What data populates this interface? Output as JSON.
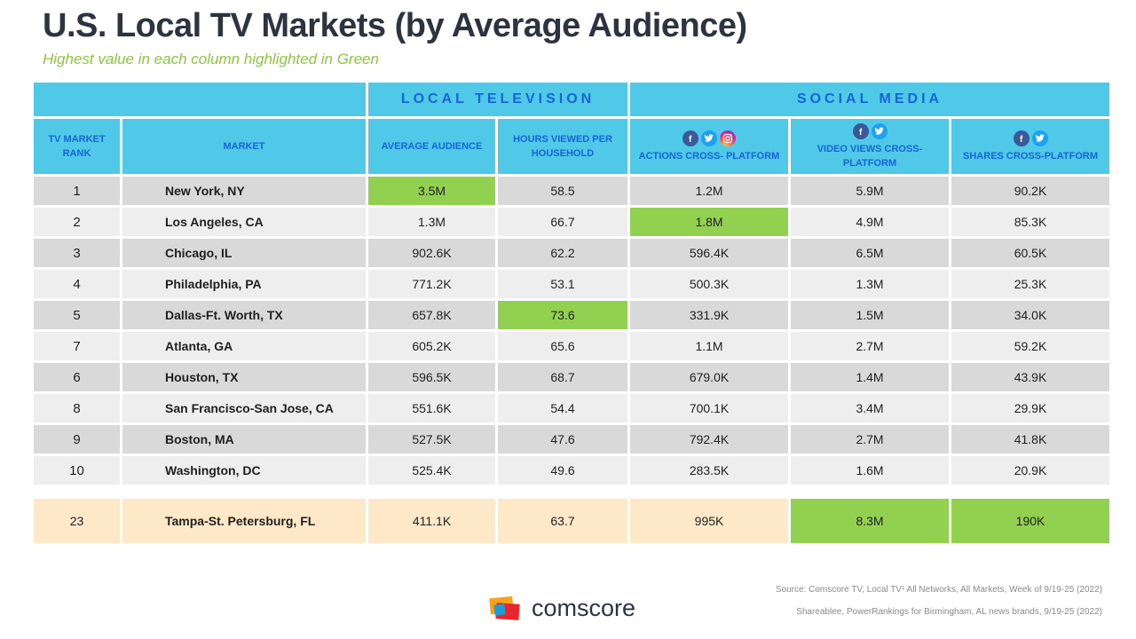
{
  "title": "U.S. Local TV Markets (by Average Audience)",
  "subtitle": "Highest value in each column highlighted in Green",
  "groups": {
    "local_tv": "LOCAL TELEVISION",
    "social": "SOCIAL MEDIA"
  },
  "columns": {
    "rank": "TV MARKET RANK",
    "market": "MARKET",
    "avg_audience": "AVERAGE AUDIENCE",
    "hours": "HOURS VIEWED PER HOUSEHOLD",
    "actions": "ACTIONS CROSS- PLATFORM",
    "video_views": "VIDEO VIEWS CROSS-PLATFORM",
    "shares": "SHARES CROSS-PLATFORM"
  },
  "icons": {
    "actions": [
      "facebook-icon",
      "twitter-icon",
      "instagram-icon"
    ],
    "video_views": [
      "facebook-icon",
      "twitter-icon"
    ],
    "shares": [
      "facebook-icon",
      "twitter-icon"
    ]
  },
  "rows": [
    {
      "rank": "1",
      "market": "New York, NY",
      "avg_audience": "3.5M",
      "hours": "58.5",
      "actions": "1.2M",
      "video_views": "5.9M",
      "shares": "90.2K"
    },
    {
      "rank": "2",
      "market": "Los Angeles, CA",
      "avg_audience": "1.3M",
      "hours": "66.7",
      "actions": "1.8M",
      "video_views": "4.9M",
      "shares": "85.3K"
    },
    {
      "rank": "3",
      "market": "Chicago, IL",
      "avg_audience": "902.6K",
      "hours": "62.2",
      "actions": "596.4K",
      "video_views": "6.5M",
      "shares": "60.5K"
    },
    {
      "rank": "4",
      "market": "Philadelphia, PA",
      "avg_audience": "771.2K",
      "hours": "53.1",
      "actions": "500.3K",
      "video_views": "1.3M",
      "shares": "25.3K"
    },
    {
      "rank": "5",
      "market": "Dallas-Ft. Worth, TX",
      "avg_audience": "657.8K",
      "hours": "73.6",
      "actions": "331.9K",
      "video_views": "1.5M",
      "shares": "34.0K"
    },
    {
      "rank": "7",
      "market": "Atlanta, GA",
      "avg_audience": "605.2K",
      "hours": "65.6",
      "actions": "1.1M",
      "video_views": "2.7M",
      "shares": "59.2K"
    },
    {
      "rank": "6",
      "market": "Houston, TX",
      "avg_audience": "596.5K",
      "hours": "68.7",
      "actions": "679.0K",
      "video_views": "1.4M",
      "shares": "43.9K"
    },
    {
      "rank": "8",
      "market": "San Francisco-San Jose, CA",
      "avg_audience": "551.6K",
      "hours": "54.4",
      "actions": "700.1K",
      "video_views": "3.4M",
      "shares": "29.9K"
    },
    {
      "rank": "9",
      "market": "Boston, MA",
      "avg_audience": "527.5K",
      "hours": "47.6",
      "actions": "792.4K",
      "video_views": "2.7M",
      "shares": "41.8K"
    },
    {
      "rank": "10",
      "market": "Washington, DC",
      "avg_audience": "525.4K",
      "hours": "49.6",
      "actions": "283.5K",
      "video_views": "1.6M",
      "shares": "20.9K"
    }
  ],
  "featured": {
    "rank": "23",
    "market": "Tampa-St. Petersburg, FL",
    "avg_audience": "411.1K",
    "hours": "63.7",
    "actions": "995K",
    "video_views": "8.3M",
    "shares": "190K"
  },
  "highlights": {
    "highlight_color": "#92d050",
    "header_color": "#50c8e8",
    "header_text_color": "#1565d8",
    "featured_color": "#fde9c8"
  },
  "source_line_1": "Source: Comscore TV, Local TV¹ All Networks, All Markets, Week of 9/19-25 (2022)",
  "source_line_2": "Shareablee, PowerRankings for Birmingham, AL news brands, 9/19-25 (2022)",
  "brand": "comscore"
}
